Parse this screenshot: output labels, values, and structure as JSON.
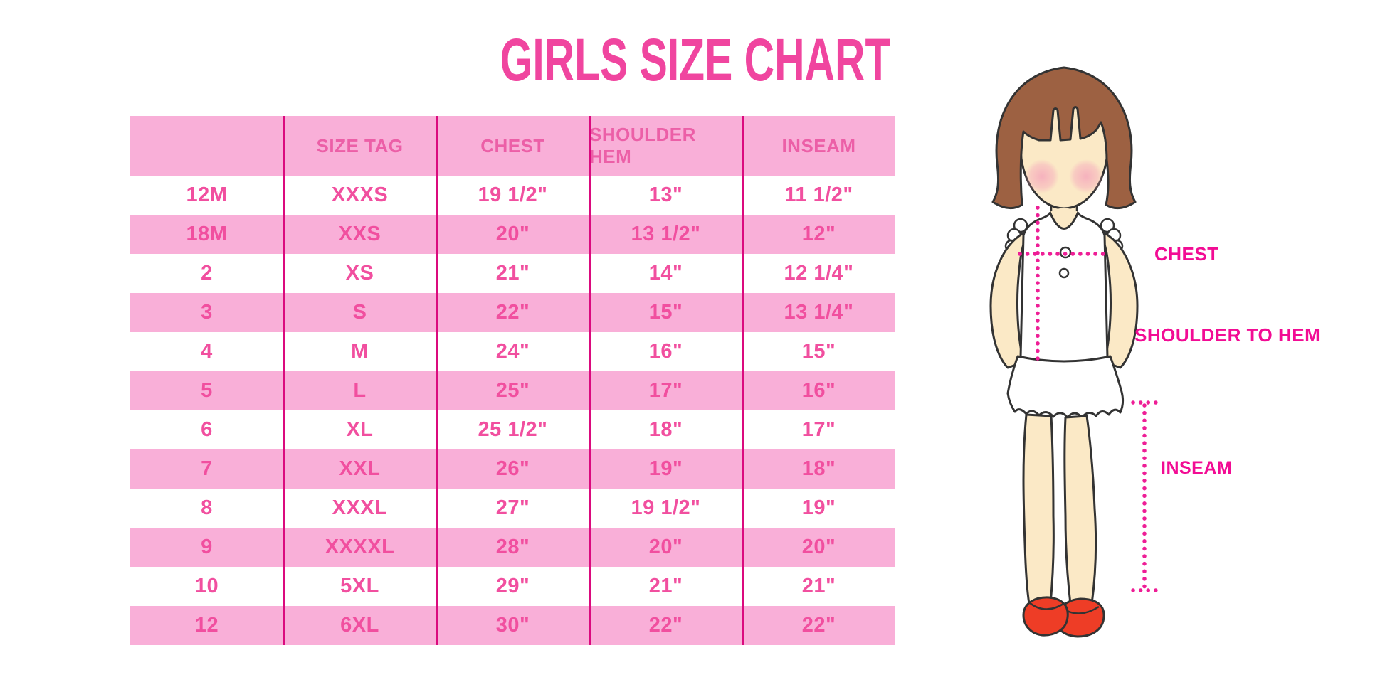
{
  "colors": {
    "title-pink": "#F0459F",
    "row-pink": "#F9AFD8",
    "header-text": "#EC5FA7",
    "cell-text": "#F14F9F",
    "divider": "#DB0A7E",
    "label-magenta": "#F20C94",
    "dot-magenta": "#EE1E96",
    "hair-brown": "#9D6142",
    "skin": "#FBE9C6",
    "outline": "#333333",
    "shoe-red": "#EE3D26"
  },
  "chart_data": {
    "type": "table",
    "title": "GIRLS SIZE CHART",
    "columns": [
      "",
      "SIZE TAG",
      "CHEST",
      "SHOULDER HEM",
      "INSEAM"
    ],
    "rows": [
      [
        "12M",
        "XXXS",
        "19 1/2\"",
        "13\"",
        "11 1/2\""
      ],
      [
        "18M",
        "XXS",
        "20\"",
        "13 1/2\"",
        "12\""
      ],
      [
        "2",
        "XS",
        "21\"",
        "14\"",
        "12 1/4\""
      ],
      [
        "3",
        "S",
        "22\"",
        "15\"",
        "13 1/4\""
      ],
      [
        "4",
        "M",
        "24\"",
        "16\"",
        "15\""
      ],
      [
        "5",
        "L",
        "25\"",
        "17\"",
        "16\""
      ],
      [
        "6",
        "XL",
        "25 1/2\"",
        "18\"",
        "17\""
      ],
      [
        "7",
        "XXL",
        "26\"",
        "19\"",
        "18\""
      ],
      [
        "8",
        "XXXL",
        "27\"",
        "19 1/2\"",
        "19\""
      ],
      [
        "9",
        "XXXXL",
        "28\"",
        "20\"",
        "20\""
      ],
      [
        "10",
        "5XL",
        "29\"",
        "21\"",
        "21\""
      ],
      [
        "12",
        "6XL",
        "30\"",
        "22\"",
        "22\""
      ]
    ],
    "row_striping": "white/pink alternating, header pink",
    "legend_position": "none",
    "grid": "vertical magenta column dividers only"
  },
  "figure": {
    "description_labels": {
      "chest": "CHEST",
      "shoulder_to_hem": "SHOULDER TO HEM",
      "inseam": "INSEAM"
    }
  }
}
